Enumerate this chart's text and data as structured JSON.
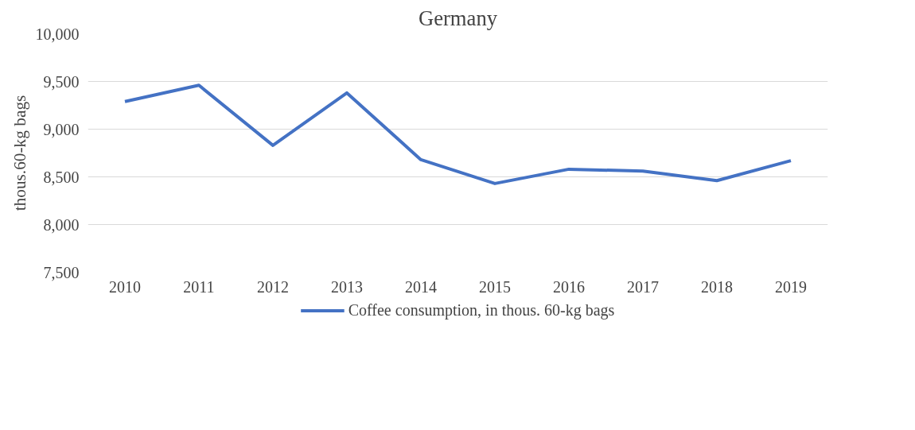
{
  "chart_data": {
    "type": "line",
    "title": "Germany",
    "ylabel": "thous.60-kg bags",
    "categories": [
      "2010",
      "2011",
      "2012",
      "2013",
      "2014",
      "2015",
      "2016",
      "2017",
      "2018",
      "2019"
    ],
    "series": [
      {
        "name": "Coffee consumption, in thous. 60-kg bags",
        "color": "#4472c4",
        "values": [
          9290,
          9460,
          8830,
          9380,
          8680,
          8430,
          8580,
          8560,
          8460,
          8670
        ]
      }
    ],
    "ylim": [
      7500,
      10000
    ],
    "yticks": [
      {
        "value": 7500,
        "label": "7,500"
      },
      {
        "value": 8000,
        "label": "8,000"
      },
      {
        "value": 8500,
        "label": "8,500"
      },
      {
        "value": 9000,
        "label": "9,000"
      },
      {
        "value": 9500,
        "label": "9,500"
      },
      {
        "value": 10000,
        "label": "10,000"
      }
    ],
    "grid": "y",
    "legend": "bottom",
    "marker": "none",
    "line_style": "solid"
  }
}
